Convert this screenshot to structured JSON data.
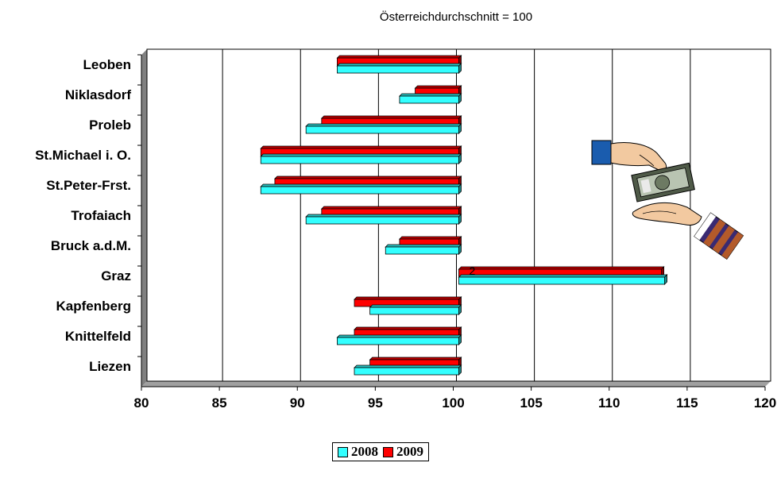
{
  "chart_data": {
    "type": "bar",
    "orientation": "horizontal",
    "subtitle": "Österreichdurchschnitt = 100",
    "categories": [
      "Leoben",
      "Niklasdorf",
      "Proleb",
      "St.Michael i. O.",
      "St.Peter-Frst.",
      "Trofaiach",
      "Bruck a.d.M.",
      "Graz",
      "Kapfenberg",
      "Knittelfeld",
      "Liezen"
    ],
    "series": [
      {
        "name": "2008",
        "color": "#33ffff",
        "values": [
          92.2,
          96.2,
          90.2,
          87.3,
          87.3,
          90.2,
          95.3,
          113.2,
          94.3,
          92.2,
          93.3
        ]
      },
      {
        "name": "2009",
        "color": "#ff0000",
        "values": [
          92.2,
          97.2,
          91.2,
          87.3,
          88.2,
          91.2,
          96.2,
          113.0,
          93.3,
          93.3,
          94.3
        ]
      }
    ],
    "baseline": 100,
    "xlim": [
      80,
      120
    ],
    "xticks": [
      80,
      85,
      90,
      95,
      100,
      105,
      110,
      115,
      120
    ],
    "grid": "vertical",
    "legend": "bottom-center",
    "annotation": "2"
  },
  "decor": {
    "clipart": "hands-exchanging-money-icon"
  }
}
